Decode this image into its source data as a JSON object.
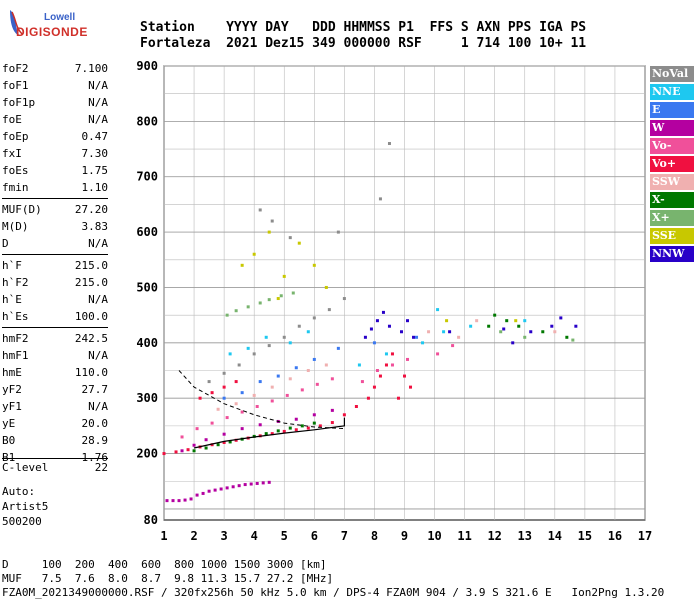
{
  "logo": {
    "line1": "Lowell",
    "line2": "DIGISONDE"
  },
  "header": {
    "line1": "Station    YYYY DAY   DDD HHMMSS P1  FFS S AXN PPS IGA PS",
    "line2": "Fortaleza  2021 Dez15 349 000000 RSF     1 714 100 10+ 11"
  },
  "params": [
    {
      "label": "foF2",
      "value": "7.100"
    },
    {
      "label": "foF1",
      "value": "N/A"
    },
    {
      "label": "foF1p",
      "value": "N/A"
    },
    {
      "label": "foE",
      "value": "N/A"
    },
    {
      "label": "foEp",
      "value": "0.47"
    },
    {
      "label": "fxI",
      "value": "7.30"
    },
    {
      "label": "foEs",
      "value": "1.75"
    },
    {
      "label": "fmin",
      "value": "1.10"
    },
    {
      "sep": true
    },
    {
      "label": "MUF(D)",
      "value": "27.20"
    },
    {
      "label": "M(D)",
      "value": "3.83"
    },
    {
      "label": "D",
      "value": "N/A"
    },
    {
      "sep": true
    },
    {
      "label": "h`F",
      "value": "215.0"
    },
    {
      "label": "h`F2",
      "value": "215.0"
    },
    {
      "label": "h`E",
      "value": "N/A"
    },
    {
      "label": "h`Es",
      "value": "100.0"
    },
    {
      "sep": true
    },
    {
      "label": "hmF2",
      "value": "242.5"
    },
    {
      "label": "hmF1",
      "value": "N/A"
    },
    {
      "label": "hmE",
      "value": "110.0"
    },
    {
      "label": "yF2",
      "value": "27.7"
    },
    {
      "label": "yF1",
      "value": "N/A"
    },
    {
      "label": "yE",
      "value": "20.0"
    },
    {
      "label": "B0",
      "value": "28.9"
    },
    {
      "label": "B1",
      "value": "1.76"
    }
  ],
  "clevel": {
    "label": "C-level",
    "value": "22"
  },
  "auto": {
    "line1": "Auto:",
    "line2": "Artist5",
    "line3": "500200"
  },
  "legend": [
    {
      "label": "NoVal",
      "color": "#8c8c8c"
    },
    {
      "label": "NNE",
      "color": "#1ec8f0"
    },
    {
      "label": "E",
      "color": "#3a78f0"
    },
    {
      "label": "W",
      "color": "#b400a0"
    },
    {
      "label": "Vo-",
      "color": "#f0509a"
    },
    {
      "label": "Vo+",
      "color": "#f01040"
    },
    {
      "label": "SSW",
      "color": "#f0b0b0"
    },
    {
      "label": "X-",
      "color": "#007800"
    },
    {
      "label": "X+",
      "color": "#78b46e"
    },
    {
      "label": "SSE",
      "color": "#c8c800"
    },
    {
      "label": "NNW",
      "color": "#2800c8"
    }
  ],
  "footer": {
    "line1": "D     100  200  400  600  800 1000 1500 3000 [km]",
    "line2": "MUF   7.5  7.6  8.0  8.7  9.8 11.3 15.7 27.2 [MHz]",
    "line3": "FZA0M_2021349000000.RSF / 320fx256h 50 kHz 5.0 km / DPS-4 FZA0M 904 / 3.9 S 321.6 E   Ion2Png 1.3.20"
  },
  "chart_data": {
    "type": "scatter",
    "xlim": [
      1,
      17
    ],
    "ylim": [
      80,
      900
    ],
    "xticks": [
      "1",
      "2",
      "3",
      "4",
      "5",
      "6",
      "7",
      "8",
      "9",
      "10",
      "11",
      "12",
      "13",
      "14",
      "15",
      "16",
      "17"
    ],
    "yticks": [
      "80",
      "200",
      "300",
      "400",
      "500",
      "600",
      "700",
      "800",
      "900"
    ],
    "grid": true,
    "series": [
      {
        "name": "W",
        "color": "#b400a0",
        "points": [
          [
            1.1,
            115
          ],
          [
            1.3,
            115
          ],
          [
            1.5,
            115
          ],
          [
            1.7,
            116
          ],
          [
            1.9,
            118
          ],
          [
            2.1,
            125
          ],
          [
            2.3,
            128
          ],
          [
            2.5,
            132
          ],
          [
            2.7,
            134
          ],
          [
            2.9,
            136
          ],
          [
            3.1,
            138
          ],
          [
            3.3,
            140
          ],
          [
            3.5,
            142
          ],
          [
            3.7,
            144
          ],
          [
            3.9,
            145
          ],
          [
            4.1,
            146
          ],
          [
            4.3,
            147
          ],
          [
            4.5,
            148
          ],
          [
            1.6,
            205
          ],
          [
            2.0,
            215
          ],
          [
            2.4,
            225
          ],
          [
            3.0,
            235
          ],
          [
            3.6,
            245
          ],
          [
            4.2,
            252
          ],
          [
            4.8,
            258
          ],
          [
            5.4,
            262
          ],
          [
            6.0,
            270
          ],
          [
            6.6,
            278
          ]
        ]
      },
      {
        "name": "Vo+",
        "color": "#f01040",
        "points": [
          [
            1.0,
            200
          ],
          [
            1.4,
            203
          ],
          [
            1.8,
            207
          ],
          [
            2.2,
            212
          ],
          [
            2.6,
            216
          ],
          [
            3.0,
            220
          ],
          [
            3.4,
            224
          ],
          [
            3.8,
            228
          ],
          [
            4.2,
            232
          ],
          [
            4.6,
            236
          ],
          [
            5.0,
            240
          ],
          [
            5.4,
            243
          ],
          [
            5.8,
            246
          ],
          [
            6.2,
            250
          ],
          [
            6.6,
            256
          ],
          [
            7.0,
            270
          ],
          [
            7.4,
            285
          ],
          [
            7.8,
            300
          ],
          [
            8.0,
            320
          ],
          [
            8.2,
            340
          ],
          [
            8.4,
            360
          ],
          [
            8.6,
            380
          ],
          [
            8.8,
            300
          ],
          [
            9.0,
            340
          ],
          [
            9.2,
            320
          ],
          [
            2.2,
            300
          ],
          [
            2.6,
            310
          ],
          [
            3.0,
            320
          ],
          [
            3.4,
            330
          ]
        ]
      },
      {
        "name": "Vo-",
        "color": "#f0509a",
        "points": [
          [
            1.6,
            230
          ],
          [
            2.1,
            245
          ],
          [
            2.6,
            255
          ],
          [
            3.1,
            265
          ],
          [
            3.6,
            275
          ],
          [
            4.1,
            285
          ],
          [
            4.6,
            295
          ],
          [
            5.1,
            305
          ],
          [
            5.6,
            315
          ],
          [
            6.1,
            325
          ],
          [
            6.6,
            335
          ],
          [
            7.6,
            330
          ],
          [
            8.1,
            350
          ],
          [
            8.6,
            360
          ],
          [
            9.1,
            370
          ],
          [
            10.1,
            380
          ],
          [
            10.6,
            395
          ]
        ]
      },
      {
        "name": "NNW",
        "color": "#2800c8",
        "points": [
          [
            7.7,
            410
          ],
          [
            7.9,
            425
          ],
          [
            8.1,
            440
          ],
          [
            8.3,
            455
          ],
          [
            8.5,
            430
          ],
          [
            8.9,
            420
          ],
          [
            9.1,
            440
          ],
          [
            9.3,
            410
          ],
          [
            10.5,
            420
          ],
          [
            12.3,
            425
          ],
          [
            12.6,
            400
          ],
          [
            13.2,
            420
          ],
          [
            13.9,
            430
          ],
          [
            14.2,
            445
          ],
          [
            14.7,
            430
          ]
        ]
      },
      {
        "name": "NNE",
        "color": "#1ec8f0",
        "points": [
          [
            3.2,
            380
          ],
          [
            3.8,
            390
          ],
          [
            4.4,
            410
          ],
          [
            5.2,
            400
          ],
          [
            5.8,
            420
          ],
          [
            7.5,
            360
          ],
          [
            8.4,
            380
          ],
          [
            9.6,
            400
          ],
          [
            10.1,
            460
          ],
          [
            10.3,
            420
          ],
          [
            11.2,
            430
          ],
          [
            13.0,
            440
          ]
        ]
      },
      {
        "name": "X-",
        "color": "#007800",
        "points": [
          [
            2.0,
            205
          ],
          [
            2.4,
            210
          ],
          [
            2.8,
            216
          ],
          [
            3.2,
            221
          ],
          [
            3.6,
            226
          ],
          [
            4.0,
            231
          ],
          [
            4.4,
            236
          ],
          [
            4.8,
            241
          ],
          [
            5.2,
            246
          ],
          [
            5.6,
            250
          ],
          [
            6.0,
            255
          ],
          [
            11.8,
            430
          ],
          [
            12.0,
            450
          ],
          [
            12.4,
            440
          ],
          [
            12.8,
            430
          ],
          [
            13.6,
            420
          ],
          [
            14.4,
            410
          ]
        ]
      },
      {
        "name": "X+",
        "color": "#78b46e",
        "points": [
          [
            3.1,
            450
          ],
          [
            3.4,
            458
          ],
          [
            3.8,
            465
          ],
          [
            4.2,
            472
          ],
          [
            4.5,
            478
          ],
          [
            4.9,
            485
          ],
          [
            5.3,
            490
          ],
          [
            12.2,
            420
          ],
          [
            13.0,
            410
          ],
          [
            14.6,
            405
          ]
        ]
      },
      {
        "name": "SSE",
        "color": "#c8c800",
        "points": [
          [
            4.0,
            560
          ],
          [
            4.5,
            600
          ],
          [
            5.0,
            520
          ],
          [
            5.5,
            580
          ],
          [
            6.0,
            540
          ],
          [
            3.6,
            540
          ],
          [
            4.8,
            480
          ],
          [
            6.4,
            500
          ],
          [
            10.4,
            440
          ],
          [
            12.7,
            440
          ]
        ]
      },
      {
        "name": "SSW",
        "color": "#f0b0b0",
        "points": [
          [
            2.8,
            280
          ],
          [
            3.4,
            290
          ],
          [
            4.0,
            305
          ],
          [
            4.6,
            320
          ],
          [
            5.2,
            335
          ],
          [
            5.8,
            350
          ],
          [
            6.4,
            360
          ],
          [
            9.8,
            420
          ],
          [
            10.8,
            410
          ],
          [
            11.4,
            440
          ],
          [
            14.0,
            420
          ]
        ]
      },
      {
        "name": "E",
        "color": "#3a78f0",
        "points": [
          [
            3.0,
            300
          ],
          [
            3.6,
            310
          ],
          [
            4.2,
            330
          ],
          [
            4.8,
            340
          ],
          [
            5.4,
            355
          ],
          [
            6.0,
            370
          ],
          [
            6.8,
            390
          ],
          [
            8.0,
            400
          ],
          [
            9.4,
            410
          ]
        ]
      },
      {
        "name": "NoVal",
        "color": "#8c8c8c",
        "points": [
          [
            2.5,
            330
          ],
          [
            3.0,
            345
          ],
          [
            3.5,
            360
          ],
          [
            4.0,
            380
          ],
          [
            4.5,
            395
          ],
          [
            5.0,
            410
          ],
          [
            5.5,
            430
          ],
          [
            6.0,
            445
          ],
          [
            6.5,
            460
          ],
          [
            7.0,
            480
          ],
          [
            4.2,
            640
          ],
          [
            4.6,
            620
          ],
          [
            5.2,
            590
          ],
          [
            6.8,
            600
          ],
          [
            8.2,
            660
          ],
          [
            8.5,
            760
          ]
        ]
      }
    ],
    "curve_points": [
      [
        1.5,
        350
      ],
      [
        2.0,
        320
      ],
      [
        3.0,
        290
      ],
      [
        4.0,
        270
      ],
      [
        5.0,
        255
      ],
      [
        6.0,
        248
      ],
      [
        7.0,
        245
      ]
    ],
    "profile_points": [
      [
        2.0,
        210
      ],
      [
        3.0,
        222
      ],
      [
        4.0,
        230
      ],
      [
        5.0,
        237
      ],
      [
        6.0,
        243
      ],
      [
        7.0,
        250
      ],
      [
        7.0,
        265
      ]
    ]
  }
}
